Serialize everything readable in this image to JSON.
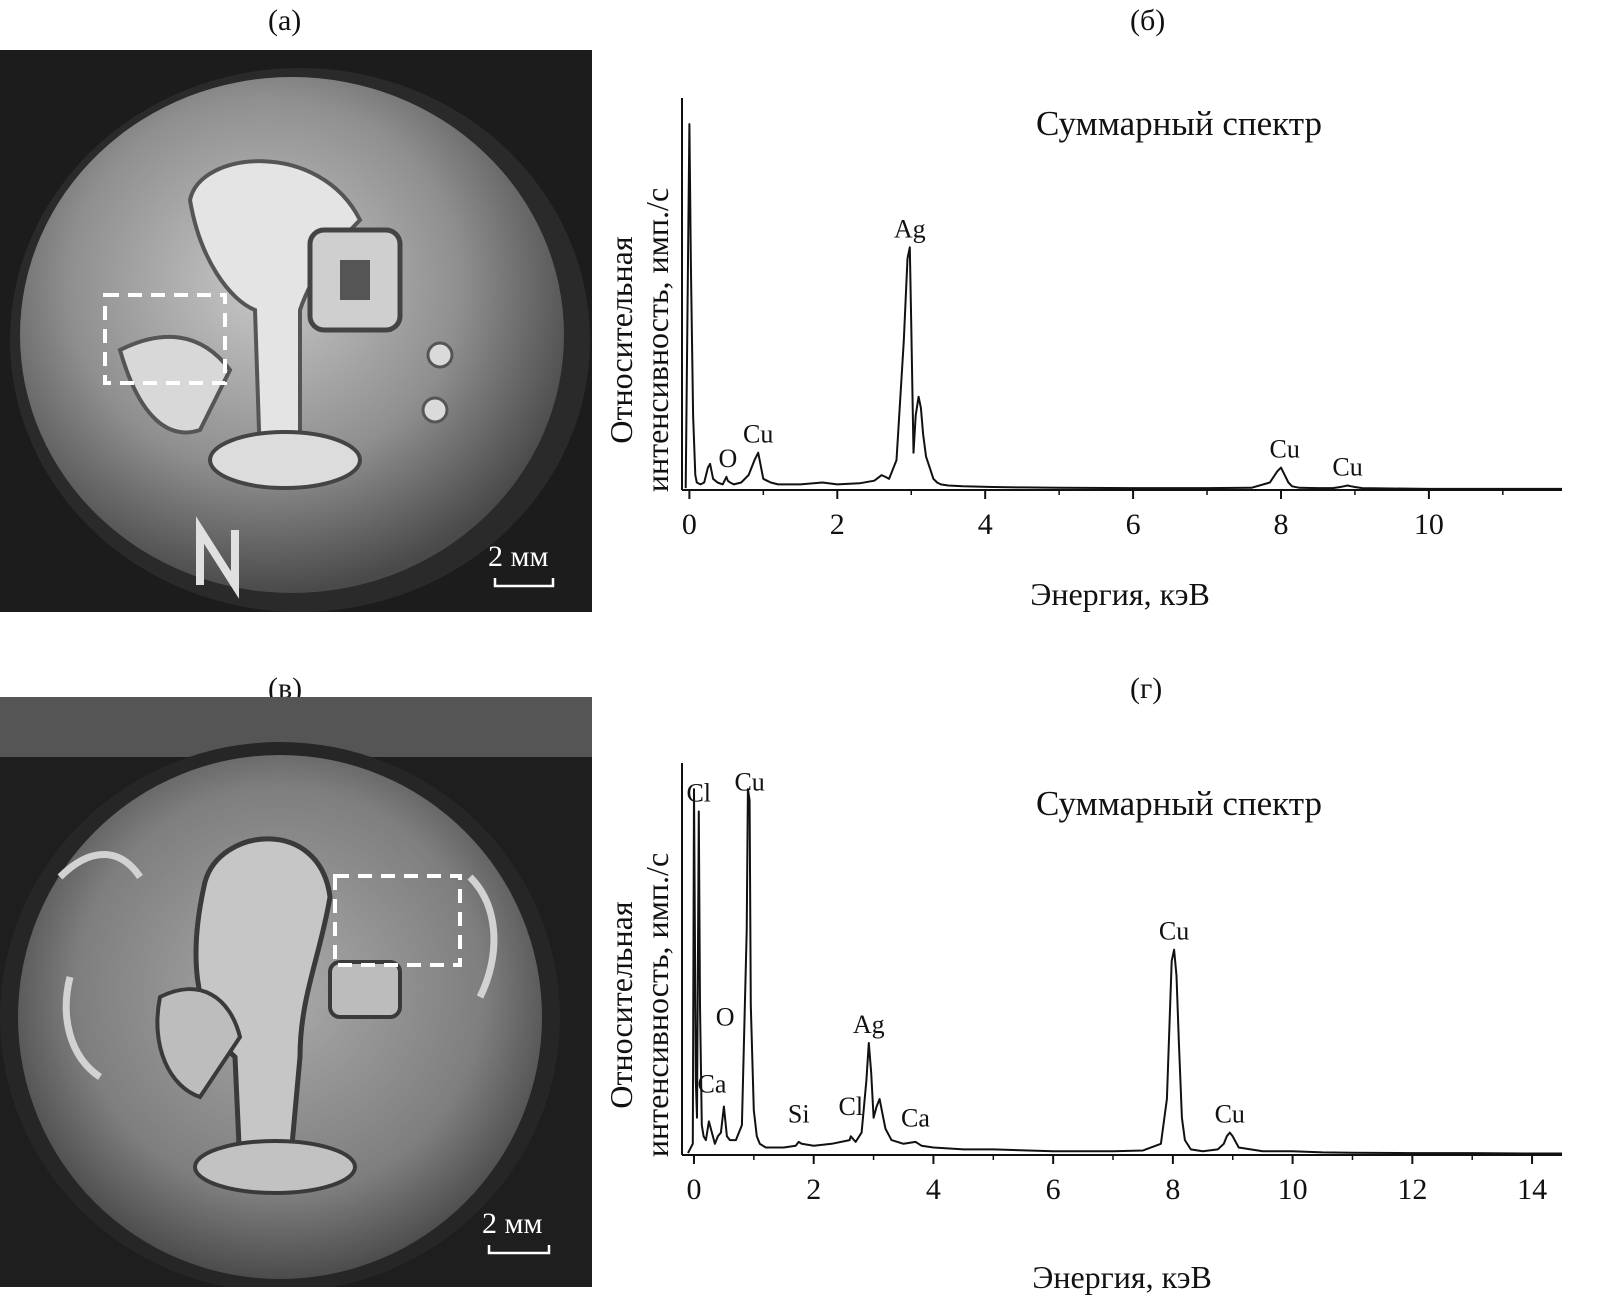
{
  "panels": [
    {
      "id": "a",
      "label": "(а)",
      "kind": "photo",
      "scale_text": "2 мм"
    },
    {
      "id": "b",
      "label": "(б)",
      "kind": "spectrum"
    },
    {
      "id": "c",
      "label": "(в)",
      "kind": "photo",
      "scale_text": "2 мм"
    },
    {
      "id": "d",
      "label": "(г)",
      "kind": "spectrum"
    }
  ],
  "colors": {
    "line": "#111111",
    "photo_bg": "#1a1a1a",
    "coin": "#9a9a9a",
    "marker": "#ffffff"
  },
  "chart_data": [
    {
      "type": "line",
      "title": "Суммарный спектр",
      "xlabel": "Энергия, кэВ",
      "ylabel_lines": [
        "Относительная",
        "интенсивность, имп./с"
      ],
      "xlim": [
        -0.1,
        11.8
      ],
      "ylim": [
        0,
        105
      ],
      "xticks": [
        0,
        2,
        4,
        6,
        8,
        10
      ],
      "series": [
        {
          "x": [
            -0.05,
            0,
            0.02,
            0.05,
            0.08,
            0.1,
            0.15,
            0.2,
            0.25,
            0.28,
            0.32,
            0.38,
            0.45,
            0.5,
            0.52,
            0.55,
            0.6,
            0.7,
            0.8,
            0.88,
            0.93,
            0.97,
            1.0,
            1.05,
            1.1,
            1.2,
            1.5,
            1.8,
            2.0,
            2.3,
            2.5,
            2.6,
            2.65,
            2.7,
            2.8,
            2.9,
            2.95,
            2.98,
            3.0,
            3.03,
            3.06,
            3.1,
            3.13,
            3.16,
            3.2,
            3.25,
            3.3,
            3.35,
            3.4,
            3.5,
            3.7,
            3.9,
            4.1,
            4.5,
            5,
            6,
            7,
            7.6,
            7.85,
            7.95,
            8.0,
            8.05,
            8.1,
            8.15,
            8.25,
            8.5,
            8.7,
            8.8,
            8.85,
            8.9,
            8.95,
            9.0,
            9.1,
            9.5,
            10,
            11,
            11.8
          ],
          "y": [
            0.5,
            98,
            60,
            20,
            4,
            2,
            1.5,
            2,
            6,
            7,
            3,
            2,
            1.5,
            3.5,
            2.5,
            2,
            1.5,
            2,
            4,
            8,
            10,
            6,
            3,
            2.5,
            2,
            1.5,
            1.5,
            2,
            1.5,
            1.8,
            2.5,
            4,
            3.5,
            3,
            8,
            40,
            62,
            65,
            45,
            10,
            20,
            25,
            22,
            15,
            9,
            6,
            3,
            2,
            1.5,
            1.2,
            1,
            0.9,
            0.8,
            0.7,
            0.6,
            0.5,
            0.5,
            0.6,
            2,
            5,
            6,
            4,
            2,
            1,
            0.6,
            0.5,
            0.5,
            0.8,
            1,
            1.2,
            1,
            0.8,
            0.5,
            0.4,
            0.3,
            0.3,
            0.3
          ]
        }
      ],
      "annotations": [
        {
          "text": "Ag",
          "x": 2.98,
          "y": 65
        },
        {
          "text": "Cu",
          "x": 0.93,
          "y": 10
        },
        {
          "text": "O",
          "x": 0.52,
          "y": 3.5
        },
        {
          "text": "Cu",
          "x": 8.05,
          "y": 6
        },
        {
          "text": "Cu",
          "x": 8.9,
          "y": 1.2
        }
      ]
    },
    {
      "type": "line",
      "title": "Суммарный спектр",
      "xlabel": "Энергия, кэВ",
      "ylabel_lines": [
        "Относительная",
        "интенсивность, имп./с"
      ],
      "xlim": [
        -0.2,
        14.5
      ],
      "ylim": [
        0,
        105
      ],
      "xticks": [
        0,
        2,
        4,
        6,
        8,
        10,
        12,
        14
      ],
      "series": [
        {
          "x": [
            -0.1,
            -0.02,
            0,
            0.03,
            0.05,
            0.08,
            0.1,
            0.13,
            0.16,
            0.2,
            0.25,
            0.3,
            0.35,
            0.4,
            0.45,
            0.5,
            0.55,
            0.6,
            0.7,
            0.8,
            0.88,
            0.9,
            0.93,
            0.95,
            1.0,
            1.05,
            1.1,
            1.2,
            1.5,
            1.7,
            1.75,
            1.8,
            2.0,
            2.3,
            2.6,
            2.62,
            2.7,
            2.8,
            2.88,
            2.92,
            2.96,
            3.0,
            3.05,
            3.1,
            3.15,
            3.2,
            3.3,
            3.5,
            3.7,
            3.8,
            4.0,
            4.5,
            5,
            6,
            7,
            7.5,
            7.8,
            7.9,
            7.98,
            8.02,
            8.06,
            8.1,
            8.15,
            8.2,
            8.3,
            8.5,
            8.75,
            8.85,
            8.9,
            8.95,
            9.0,
            9.1,
            9.5,
            10,
            10.5,
            11,
            12,
            13,
            14,
            14.5
          ],
          "y": [
            0.5,
            3,
            98,
            20,
            10,
            92,
            40,
            8,
            5,
            4,
            9,
            6,
            3,
            5,
            6,
            13,
            5,
            4,
            4,
            8,
            60,
            98,
            95,
            40,
            12,
            5,
            3,
            2,
            2,
            2.5,
            3.5,
            3,
            2.5,
            3,
            4,
            5,
            3.5,
            6,
            20,
            30,
            22,
            10,
            13,
            15,
            11,
            7,
            4,
            3,
            3.5,
            2.5,
            2,
            1.5,
            1.5,
            1,
            1,
            1.2,
            3,
            15,
            52,
            55,
            48,
            30,
            10,
            4,
            1.5,
            1,
            1.5,
            3,
            5,
            6,
            5,
            2,
            1,
            1,
            0.7,
            0.6,
            0.5,
            0.5,
            0.4,
            0.4
          ]
        }
      ],
      "annotations": [
        {
          "text": "Cl",
          "x": 0.08,
          "y": 92
        },
        {
          "text": "Cu",
          "x": 0.93,
          "y": 95
        },
        {
          "text": "O",
          "x": 0.52,
          "y": 32
        },
        {
          "text": "Ca",
          "x": 0.3,
          "y": 14
        },
        {
          "text": "Si",
          "x": 1.75,
          "y": 6
        },
        {
          "text": "Cl",
          "x": 2.62,
          "y": 8
        },
        {
          "text": "Ag",
          "x": 2.92,
          "y": 30
        },
        {
          "text": "Ca",
          "x": 3.7,
          "y": 5
        },
        {
          "text": "Cu",
          "x": 8.02,
          "y": 55
        },
        {
          "text": "Cu",
          "x": 8.95,
          "y": 6
        }
      ]
    }
  ]
}
